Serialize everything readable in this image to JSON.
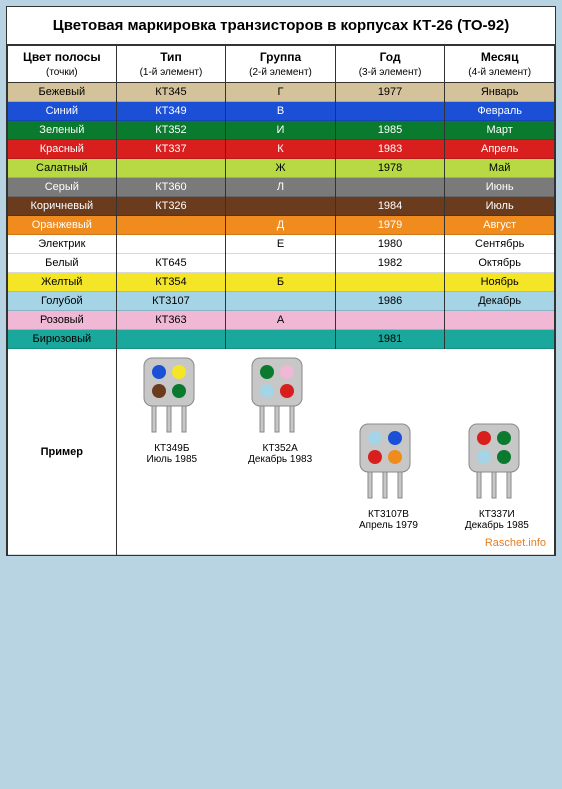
{
  "title": "Цветовая маркировка транзисторов в корпусах КТ-26 (ТО-92)",
  "header": {
    "col1": "Цвет полосы",
    "col1_sub": "(точки)",
    "col2": "Тип",
    "col2_sub": "(1-й элемент)",
    "col3": "Группа",
    "col3_sub": "(2-й элемент)",
    "col4": "Год",
    "col4_sub": "(3-й элемент)",
    "col5": "Месяц",
    "col5_sub": "(4-й элемент)"
  },
  "rows": [
    {
      "name": "Бежевый",
      "type": "КТ345",
      "group": "Г",
      "year": "1977",
      "month": "Январь",
      "bg": "#d4c39a",
      "fg": "#000000"
    },
    {
      "name": "Синий",
      "type": "КТ349",
      "group": "В",
      "year": "",
      "month": "Февраль",
      "bg": "#1a4fd6",
      "fg": "#ffffff"
    },
    {
      "name": "Зеленый",
      "type": "КТ352",
      "group": "И",
      "year": "1985",
      "month": "Март",
      "bg": "#0a7a2e",
      "fg": "#ffffff"
    },
    {
      "name": "Красный",
      "type": "КТ337",
      "group": "К",
      "year": "1983",
      "month": "Апрель",
      "bg": "#d91e1e",
      "fg": "#ffffff"
    },
    {
      "name": "Салатный",
      "type": "",
      "group": "Ж",
      "year": "1978",
      "month": "Май",
      "bg": "#b8d943",
      "fg": "#000000"
    },
    {
      "name": "Серый",
      "type": "КТ360",
      "group": "Л",
      "year": "",
      "month": "Июнь",
      "bg": "#7a7a7a",
      "fg": "#ffffff"
    },
    {
      "name": "Коричневый",
      "type": "КТ326",
      "group": "",
      "year": "1984",
      "month": "Июль",
      "bg": "#6b3b1e",
      "fg": "#ffffff"
    },
    {
      "name": "Оранжевый",
      "type": "",
      "group": "Д",
      "year": "1979",
      "month": "Август",
      "bg": "#f08b1d",
      "fg": "#ffffff"
    },
    {
      "name": "Электрик",
      "type": "",
      "group": "Е",
      "year": "1980",
      "month": "Сентябрь",
      "bg": "#ffffff",
      "fg": "#000000"
    },
    {
      "name": "Белый",
      "type": "КТ645",
      "group": "",
      "year": "1982",
      "month": "Октябрь",
      "bg": "#ffffff",
      "fg": "#000000"
    },
    {
      "name": "Желтый",
      "type": "КТ354",
      "group": "Б",
      "year": "",
      "month": "Ноябрь",
      "bg": "#f5e527",
      "fg": "#000000"
    },
    {
      "name": "Голубой",
      "type": "КТ3107",
      "group": "",
      "year": "1986",
      "month": "Декабрь",
      "bg": "#a4d4e6",
      "fg": "#000000"
    },
    {
      "name": "Розовый",
      "type": "КТ363",
      "group": "А",
      "year": "",
      "month": "",
      "bg": "#f0b8d4",
      "fg": "#000000"
    },
    {
      "name": "Бирюзовый",
      "type": "",
      "group": "",
      "year": "1981",
      "month": "",
      "bg": "#1aa89c",
      "fg": "#000000"
    }
  ],
  "example": {
    "label": "Пример",
    "chips": [
      {
        "code": "КТ349Б",
        "date": "Июль 1985",
        "dots": [
          "#1a4fd6",
          "#f5e527",
          "#6b3b1e",
          "#0a7a2e"
        ],
        "offset": false
      },
      {
        "code": "КТ352А",
        "date": "Декабрь 1983",
        "dots": [
          "#0a7a2e",
          "#f0b8d4",
          "#a4d4e6",
          "#d91e1e"
        ],
        "offset": false
      },
      {
        "code": "КТ3107В",
        "date": "Апрель 1979",
        "dots": [
          "#a4d4e6",
          "#1a4fd6",
          "#d91e1e",
          "#f08b1d"
        ],
        "offset": true
      },
      {
        "code": "КТ337И",
        "date": "Декабрь 1985",
        "dots": [
          "#d91e1e",
          "#0a7a2e",
          "#a4d4e6",
          "#0a7a2e"
        ],
        "offset": true
      }
    ]
  },
  "body_color": "#c7c7c7",
  "watermark": "Raschet.info"
}
